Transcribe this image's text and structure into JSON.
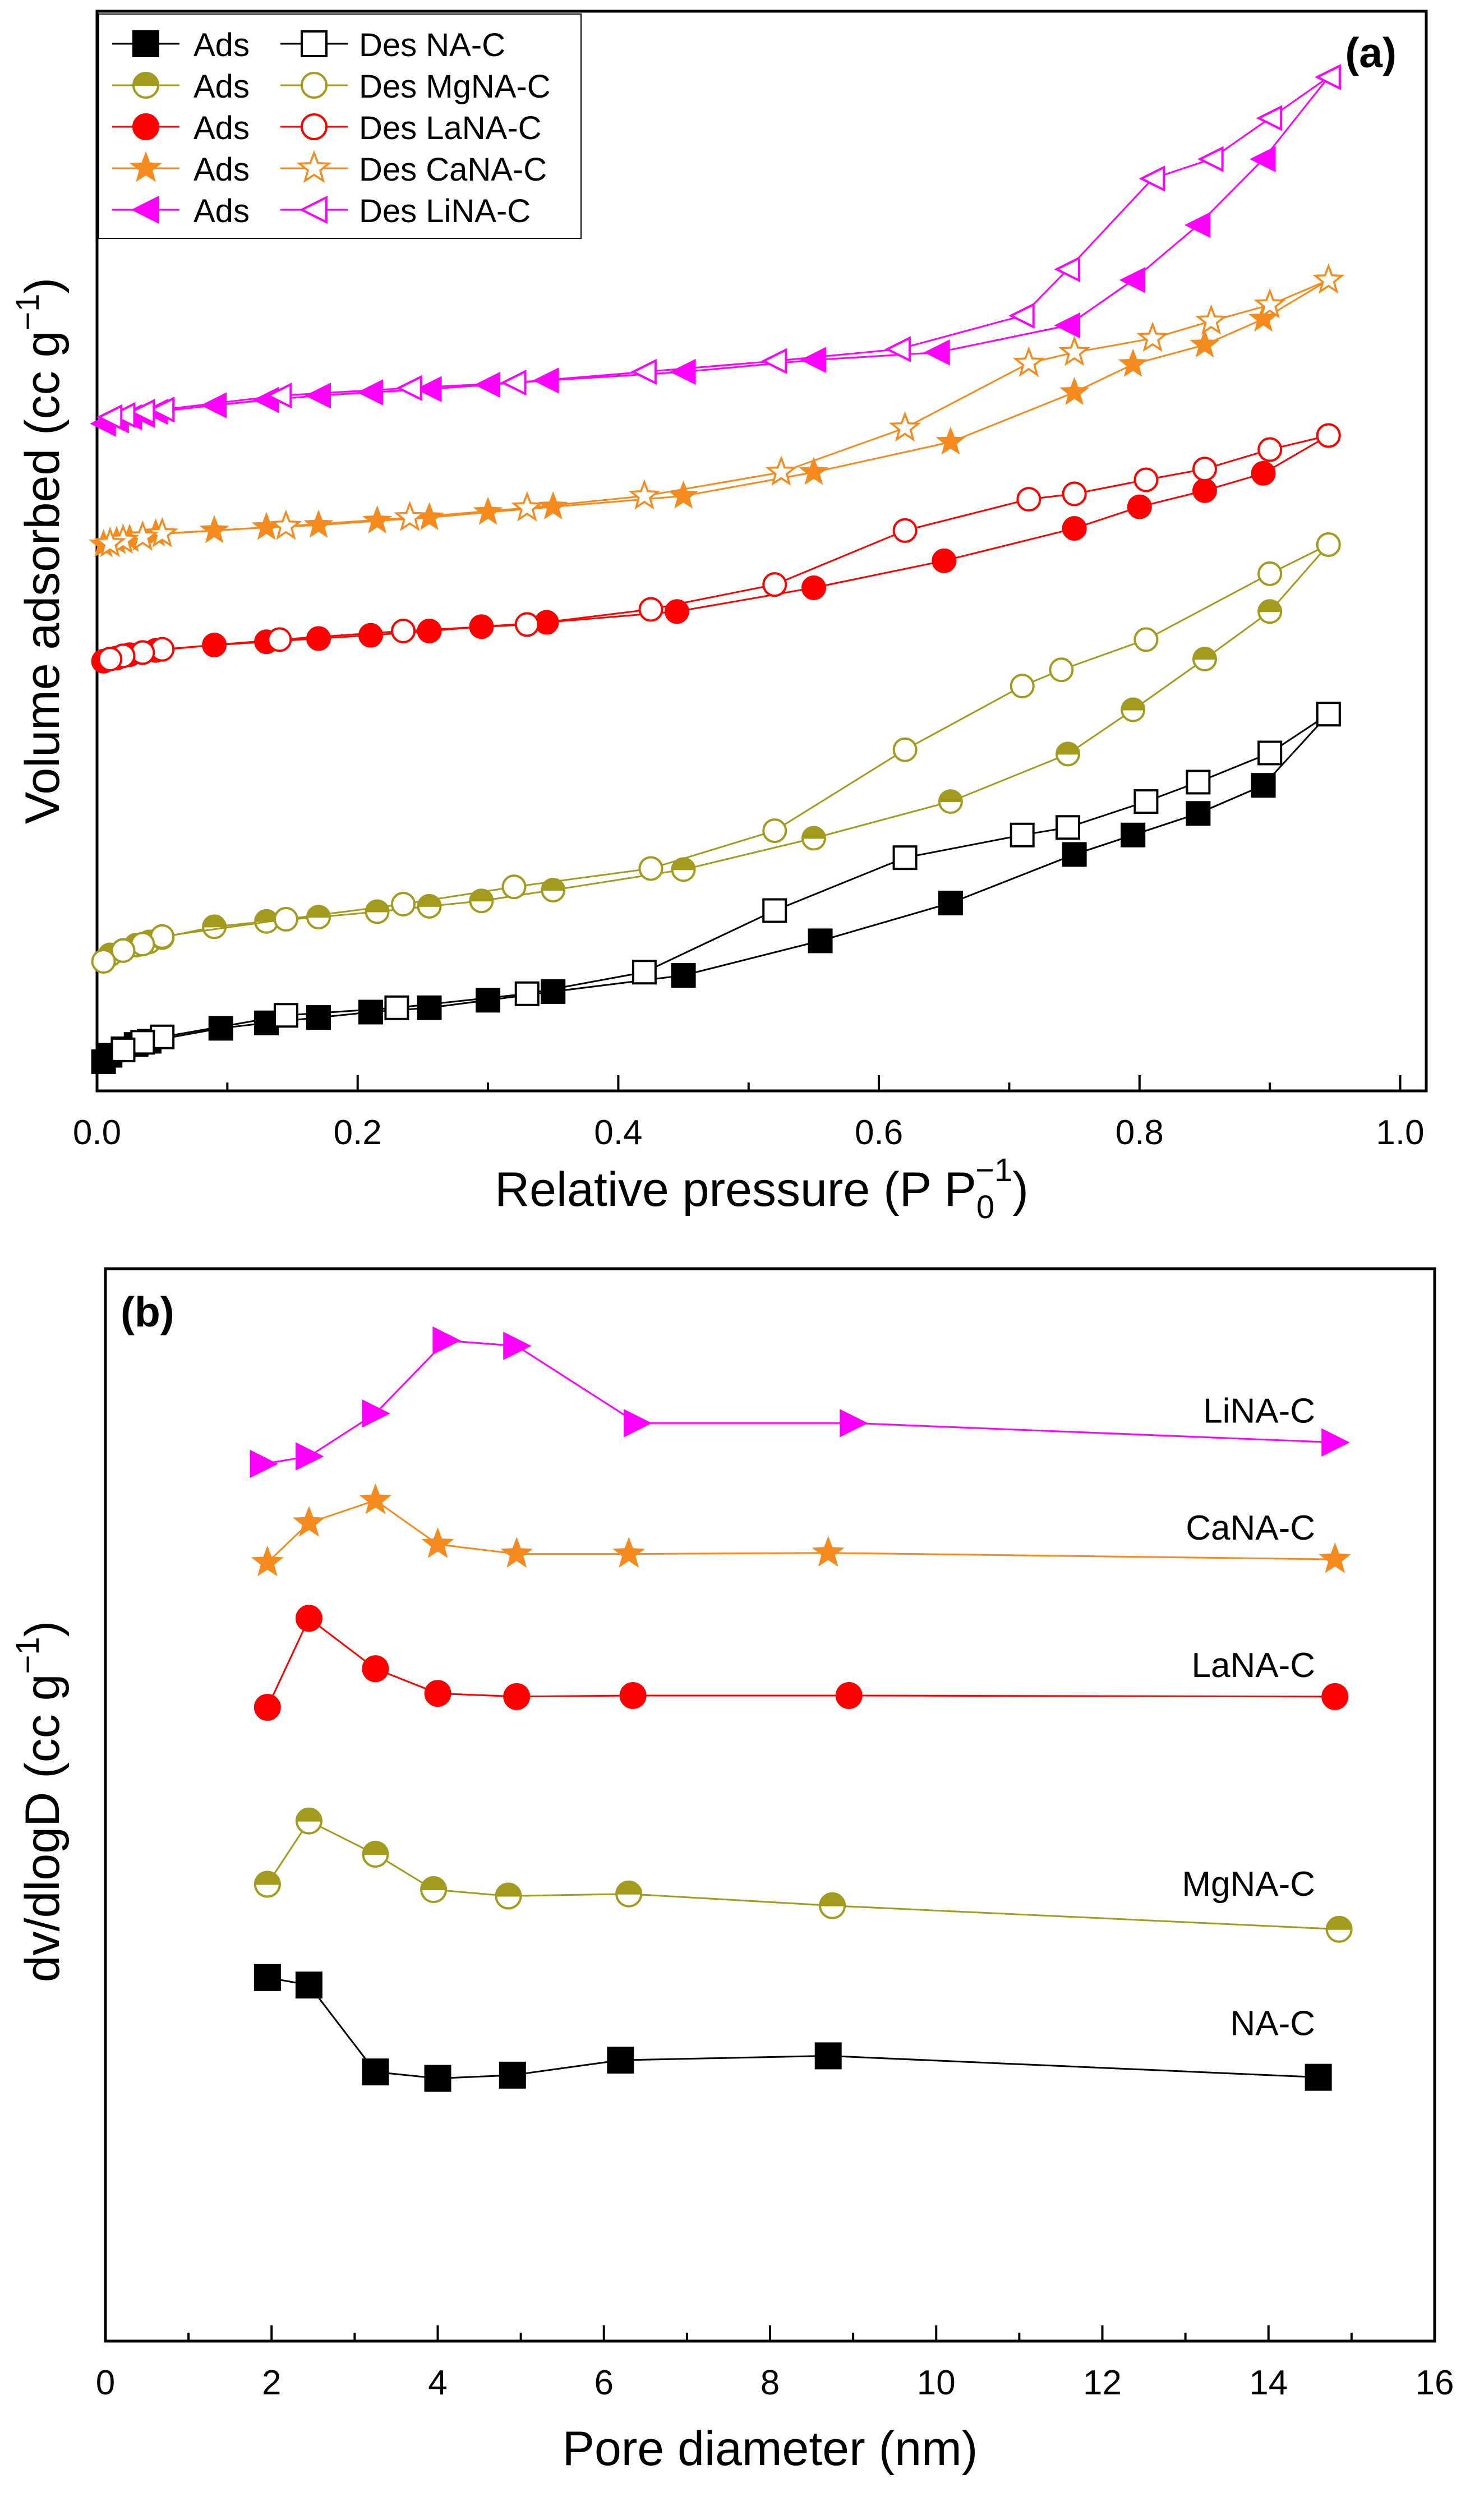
{
  "colors": {
    "NA-C": "#000000",
    "MgNA-C": "#a39b1e",
    "LaNA-C": "#ff0000",
    "CaNA-C": "#f58a1f",
    "LiNA-C": "#ff00ff"
  },
  "chart_data": [
    {
      "panel_label": "(a)",
      "type": "line",
      "title": "",
      "xlabel": "Relative pressure (P P0⁻¹)",
      "xlabel_parts": {
        "main": "Relative pressure (P P",
        "sub": "0",
        "sup": "−1",
        "close": ")"
      },
      "ylabel": "Volume adsorbed (cc g⁻¹)",
      "ylabel_parts": {
        "main": "Volume adsorbed (cc g",
        "sup": "−1",
        "close": ")"
      },
      "xlim": [
        0.0,
        1.02
      ],
      "ylim": [
        0,
        100
      ],
      "xticks": [
        "0.0",
        "0.2",
        "0.4",
        "0.6",
        "0.8",
        "1.0"
      ],
      "grid": false,
      "legend_position": "top-left",
      "legend": [
        {
          "ads_label": "Ads",
          "des_label": "Des NA-C",
          "sample": "NA-C",
          "marker": "square"
        },
        {
          "ads_label": "Ads",
          "des_label": "Des MgNA-C",
          "sample": "MgNA-C",
          "marker": "halfcircle"
        },
        {
          "ads_label": "Ads",
          "des_label": "Des LaNA-C",
          "sample": "LaNA-C",
          "marker": "circle"
        },
        {
          "ads_label": "Ads",
          "des_label": "Des CaNA-C",
          "sample": "CaNA-C",
          "marker": "star"
        },
        {
          "ads_label": "Ads",
          "des_label": "Des LiNA-C",
          "sample": "LiNA-C",
          "marker": "triangle-left"
        }
      ],
      "series": [
        {
          "name": "Ads NA-C",
          "sample": "NA-C",
          "marker": "square",
          "filled": true,
          "x": [
            0.005,
            0.01,
            0.02,
            0.03,
            0.04,
            0.095,
            0.13,
            0.17,
            0.21,
            0.255,
            0.3,
            0.35,
            0.45,
            0.555,
            0.655,
            0.75,
            0.795,
            0.845,
            0.895,
            0.945
          ],
          "y": [
            2.7,
            3.3,
            3.9,
            4.3,
            4.6,
            5.8,
            6.3,
            6.8,
            7.3,
            7.7,
            8.4,
            9.2,
            10.7,
            13.9,
            17.4,
            21.9,
            23.7,
            25.7,
            28.3,
            34.9
          ]
        },
        {
          "name": "Des NA-C",
          "sample": "NA-C",
          "marker": "square",
          "filled": false,
          "x": [
            0.945,
            0.9,
            0.845,
            0.805,
            0.745,
            0.71,
            0.62,
            0.52,
            0.42,
            0.33,
            0.23,
            0.145,
            0.05,
            0.035,
            0.02
          ],
          "y": [
            34.9,
            31.3,
            28.6,
            26.8,
            24.4,
            23.7,
            21.6,
            16.7,
            11.0,
            9.0,
            7.7,
            7.0,
            5.0,
            4.5,
            3.8
          ]
        },
        {
          "name": "Ads MgNA-C",
          "sample": "MgNA-C",
          "marker": "halfcircle",
          "filled": true,
          "x": [
            0.01,
            0.02,
            0.03,
            0.04,
            0.05,
            0.09,
            0.13,
            0.17,
            0.215,
            0.255,
            0.295,
            0.35,
            0.45,
            0.55,
            0.655,
            0.745,
            0.795,
            0.85,
            0.9,
            0.945
          ],
          "y": [
            12.6,
            13.0,
            13.5,
            13.8,
            14.2,
            15.2,
            15.7,
            16.1,
            16.6,
            17.1,
            17.6,
            18.6,
            20.5,
            23.4,
            26.8,
            31.2,
            35.3,
            40.0,
            44.4,
            50.6
          ]
        },
        {
          "name": "Des MgNA-C",
          "sample": "MgNA-C",
          "marker": "halfcircle",
          "filled": false,
          "x": [
            0.945,
            0.9,
            0.805,
            0.74,
            0.71,
            0.62,
            0.52,
            0.425,
            0.32,
            0.235,
            0.145,
            0.05,
            0.035,
            0.02,
            0.005
          ],
          "y": [
            50.6,
            47.9,
            41.8,
            39.0,
            37.5,
            31.6,
            24.1,
            20.6,
            18.9,
            17.3,
            15.9,
            14.3,
            13.6,
            13.0,
            12.0
          ]
        },
        {
          "name": "Ads LaNA-C",
          "sample": "LaNA-C",
          "marker": "circle",
          "filled": true,
          "x": [
            0.005,
            0.015,
            0.025,
            0.035,
            0.045,
            0.09,
            0.13,
            0.17,
            0.21,
            0.255,
            0.295,
            0.345,
            0.445,
            0.55,
            0.65,
            0.75,
            0.8,
            0.85,
            0.895,
            0.945
          ],
          "y": [
            39.8,
            40.1,
            40.4,
            40.6,
            40.8,
            41.3,
            41.6,
            41.9,
            42.2,
            42.6,
            43.0,
            43.4,
            44.4,
            46.6,
            49.1,
            52.1,
            54.1,
            55.6,
            57.2,
            60.7
          ]
        },
        {
          "name": "Des LaNA-C",
          "sample": "LaNA-C",
          "marker": "circle",
          "filled": false,
          "x": [
            0.945,
            0.9,
            0.85,
            0.805,
            0.75,
            0.715,
            0.62,
            0.52,
            0.425,
            0.33,
            0.235,
            0.14,
            0.05,
            0.035,
            0.02,
            0.01
          ],
          "y": [
            60.7,
            59.4,
            57.6,
            56.6,
            55.3,
            54.8,
            51.9,
            46.9,
            44.6,
            43.2,
            42.6,
            41.8,
            40.9,
            40.6,
            40.3,
            40.0
          ]
        },
        {
          "name": "Ads CaNA-C",
          "sample": "CaNA-C",
          "marker": "star",
          "filled": true,
          "x": [
            0.005,
            0.015,
            0.025,
            0.035,
            0.045,
            0.09,
            0.13,
            0.17,
            0.215,
            0.255,
            0.3,
            0.35,
            0.45,
            0.55,
            0.655,
            0.75,
            0.795,
            0.85,
            0.895,
            0.945
          ],
          "y": [
            50.6,
            50.9,
            51.1,
            51.3,
            51.6,
            51.9,
            52.2,
            52.4,
            52.8,
            53.1,
            53.6,
            54.1,
            55.1,
            57.3,
            60.1,
            64.7,
            67.3,
            69.1,
            71.5,
            75.1
          ]
        },
        {
          "name": "Des CaNA-C",
          "sample": "CaNA-C",
          "marker": "star",
          "filled": false,
          "x": [
            0.945,
            0.9,
            0.855,
            0.81,
            0.75,
            0.715,
            0.62,
            0.525,
            0.42,
            0.33,
            0.24,
            0.145,
            0.05,
            0.035,
            0.02,
            0.01
          ],
          "y": [
            75.1,
            72.8,
            71.3,
            69.7,
            68.4,
            67.4,
            61.4,
            57.3,
            55.1,
            54.0,
            53.1,
            52.3,
            51.6,
            51.3,
            51.0,
            50.7
          ]
        },
        {
          "name": "Ads LiNA-C",
          "sample": "LiNA-C",
          "marker": "triangle-left",
          "filled": true,
          "x": [
            0.005,
            0.015,
            0.025,
            0.035,
            0.045,
            0.09,
            0.13,
            0.17,
            0.21,
            0.255,
            0.3,
            0.345,
            0.45,
            0.55,
            0.645,
            0.745,
            0.795,
            0.845,
            0.895,
            0.945
          ],
          "y": [
            61.8,
            62.1,
            62.4,
            62.6,
            62.9,
            63.5,
            64.0,
            64.4,
            64.7,
            65.0,
            65.4,
            65.8,
            66.6,
            67.7,
            68.4,
            70.9,
            75.1,
            80.2,
            86.3,
            93.9
          ]
        },
        {
          "name": "Des LiNA-C",
          "sample": "LiNA-C",
          "marker": "triangle-left",
          "filled": false,
          "x": [
            0.945,
            0.9,
            0.855,
            0.81,
            0.745,
            0.71,
            0.615,
            0.52,
            0.42,
            0.32,
            0.24,
            0.14,
            0.05,
            0.035,
            0.02,
            0.01
          ],
          "y": [
            93.9,
            90.1,
            86.3,
            84.5,
            76.1,
            71.8,
            68.7,
            67.6,
            66.6,
            65.6,
            65.1,
            64.4,
            63.1,
            62.9,
            62.6,
            62.4
          ]
        }
      ]
    },
    {
      "panel_label": "(b)",
      "type": "line",
      "title": "",
      "xlabel": "Pore diameter (nm)",
      "ylabel": "dv/dlogD (cc g⁻¹)",
      "ylabel_parts": {
        "main": "dv/dlogD (cc g",
        "sup": "−1",
        "close": ")"
      },
      "xlim": [
        0,
        16
      ],
      "ylim": [
        0,
        100
      ],
      "xticks": [
        "0",
        "2",
        "4",
        "6",
        "8",
        "10",
        "12",
        "14",
        "16"
      ],
      "grid": false,
      "series": [
        {
          "name": "LiNA-C",
          "sample": "LiNA-C",
          "marker": "triangle-right",
          "filled": true,
          "label": "LiNA-C",
          "x": [
            1.9,
            2.45,
            3.25,
            4.1,
            4.95,
            6.4,
            9.0,
            14.8
          ],
          "y": [
            81.8,
            82.5,
            86.5,
            93.3,
            92.8,
            85.6,
            85.6,
            83.8
          ]
        },
        {
          "name": "CaNA-C",
          "sample": "CaNA-C",
          "marker": "star",
          "filled": true,
          "label": "CaNA-C",
          "x": [
            1.95,
            2.45,
            3.25,
            4.0,
            4.95,
            6.3,
            8.7,
            14.8
          ],
          "y": [
            72.6,
            76.3,
            78.4,
            74.3,
            73.4,
            73.4,
            73.5,
            72.9
          ]
        },
        {
          "name": "LaNA-C",
          "sample": "LaNA-C",
          "marker": "circle",
          "filled": true,
          "label": "LaNA-C",
          "x": [
            1.95,
            2.45,
            3.25,
            4.0,
            4.95,
            6.35,
            8.95,
            14.8
          ],
          "y": [
            59.1,
            67.4,
            62.7,
            60.4,
            60.1,
            60.2,
            60.2,
            60.1
          ]
        },
        {
          "name": "MgNA-C",
          "sample": "MgNA-C",
          "marker": "halfcircle",
          "filled": true,
          "label": "MgNA-C",
          "x": [
            1.95,
            2.45,
            3.25,
            3.95,
            4.85,
            6.3,
            8.75,
            14.85
          ],
          "y": [
            42.6,
            48.5,
            45.4,
            42.1,
            41.5,
            41.7,
            40.6,
            38.4
          ]
        },
        {
          "name": "NA-C",
          "sample": "NA-C",
          "marker": "square",
          "filled": true,
          "label": "NA-C",
          "x": [
            1.95,
            2.45,
            3.25,
            4.0,
            4.9,
            6.2,
            8.7,
            14.6
          ],
          "y": [
            33.9,
            33.2,
            25.1,
            24.5,
            24.8,
            26.2,
            26.6,
            24.6
          ]
        }
      ]
    }
  ]
}
